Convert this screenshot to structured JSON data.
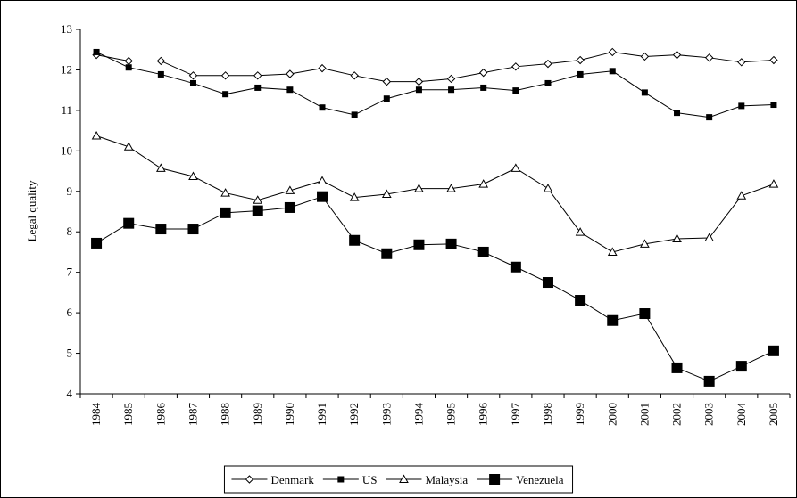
{
  "chart_data": {
    "type": "line",
    "y_label": "Legal quality",
    "categories": [
      "1984",
      "1985",
      "1986",
      "1987",
      "1988",
      "1989",
      "1990",
      "1991",
      "1992",
      "1993",
      "1994",
      "1995",
      "1996",
      "1997",
      "1998",
      "1999",
      "2000",
      "2001",
      "2002",
      "2003",
      "2004",
      "2005"
    ],
    "ylim": [
      4,
      13
    ],
    "yticks": [
      4,
      5,
      6,
      7,
      8,
      9,
      10,
      11,
      12,
      13
    ],
    "legend": "bottom",
    "series": [
      {
        "name": "Denmark",
        "color": "#000000",
        "marker": "diamond-open",
        "values": [
          12.37,
          12.22,
          12.22,
          11.86,
          11.86,
          11.86,
          11.9,
          12.04,
          11.86,
          11.71,
          11.71,
          11.78,
          11.93,
          12.08,
          12.15,
          12.24,
          12.44,
          12.33,
          12.37,
          12.3,
          12.19,
          12.24
        ]
      },
      {
        "name": "US",
        "color": "#000000",
        "marker": "square-small",
        "values": [
          12.44,
          12.06,
          11.89,
          11.67,
          11.4,
          11.56,
          11.51,
          11.07,
          10.89,
          11.29,
          11.51,
          11.51,
          11.56,
          11.49,
          11.67,
          11.89,
          11.97,
          11.44,
          10.94,
          10.83,
          11.11,
          11.14
        ]
      },
      {
        "name": "Malaysia",
        "color": "#000000",
        "marker": "triangle-open",
        "values": [
          10.37,
          10.1,
          9.57,
          9.37,
          8.96,
          8.78,
          9.02,
          9.26,
          8.85,
          8.93,
          9.07,
          9.07,
          9.18,
          9.57,
          9.07,
          7.99,
          7.5,
          7.7,
          7.83,
          7.85,
          8.89,
          9.18
        ]
      },
      {
        "name": "Venezuela",
        "color": "#000000",
        "marker": "square-large",
        "values": [
          7.72,
          8.21,
          8.07,
          8.07,
          8.47,
          8.52,
          8.6,
          8.87,
          7.79,
          7.46,
          7.68,
          7.7,
          7.5,
          7.13,
          6.75,
          6.31,
          5.81,
          5.98,
          4.64,
          4.31,
          4.68,
          5.06
        ]
      }
    ]
  }
}
